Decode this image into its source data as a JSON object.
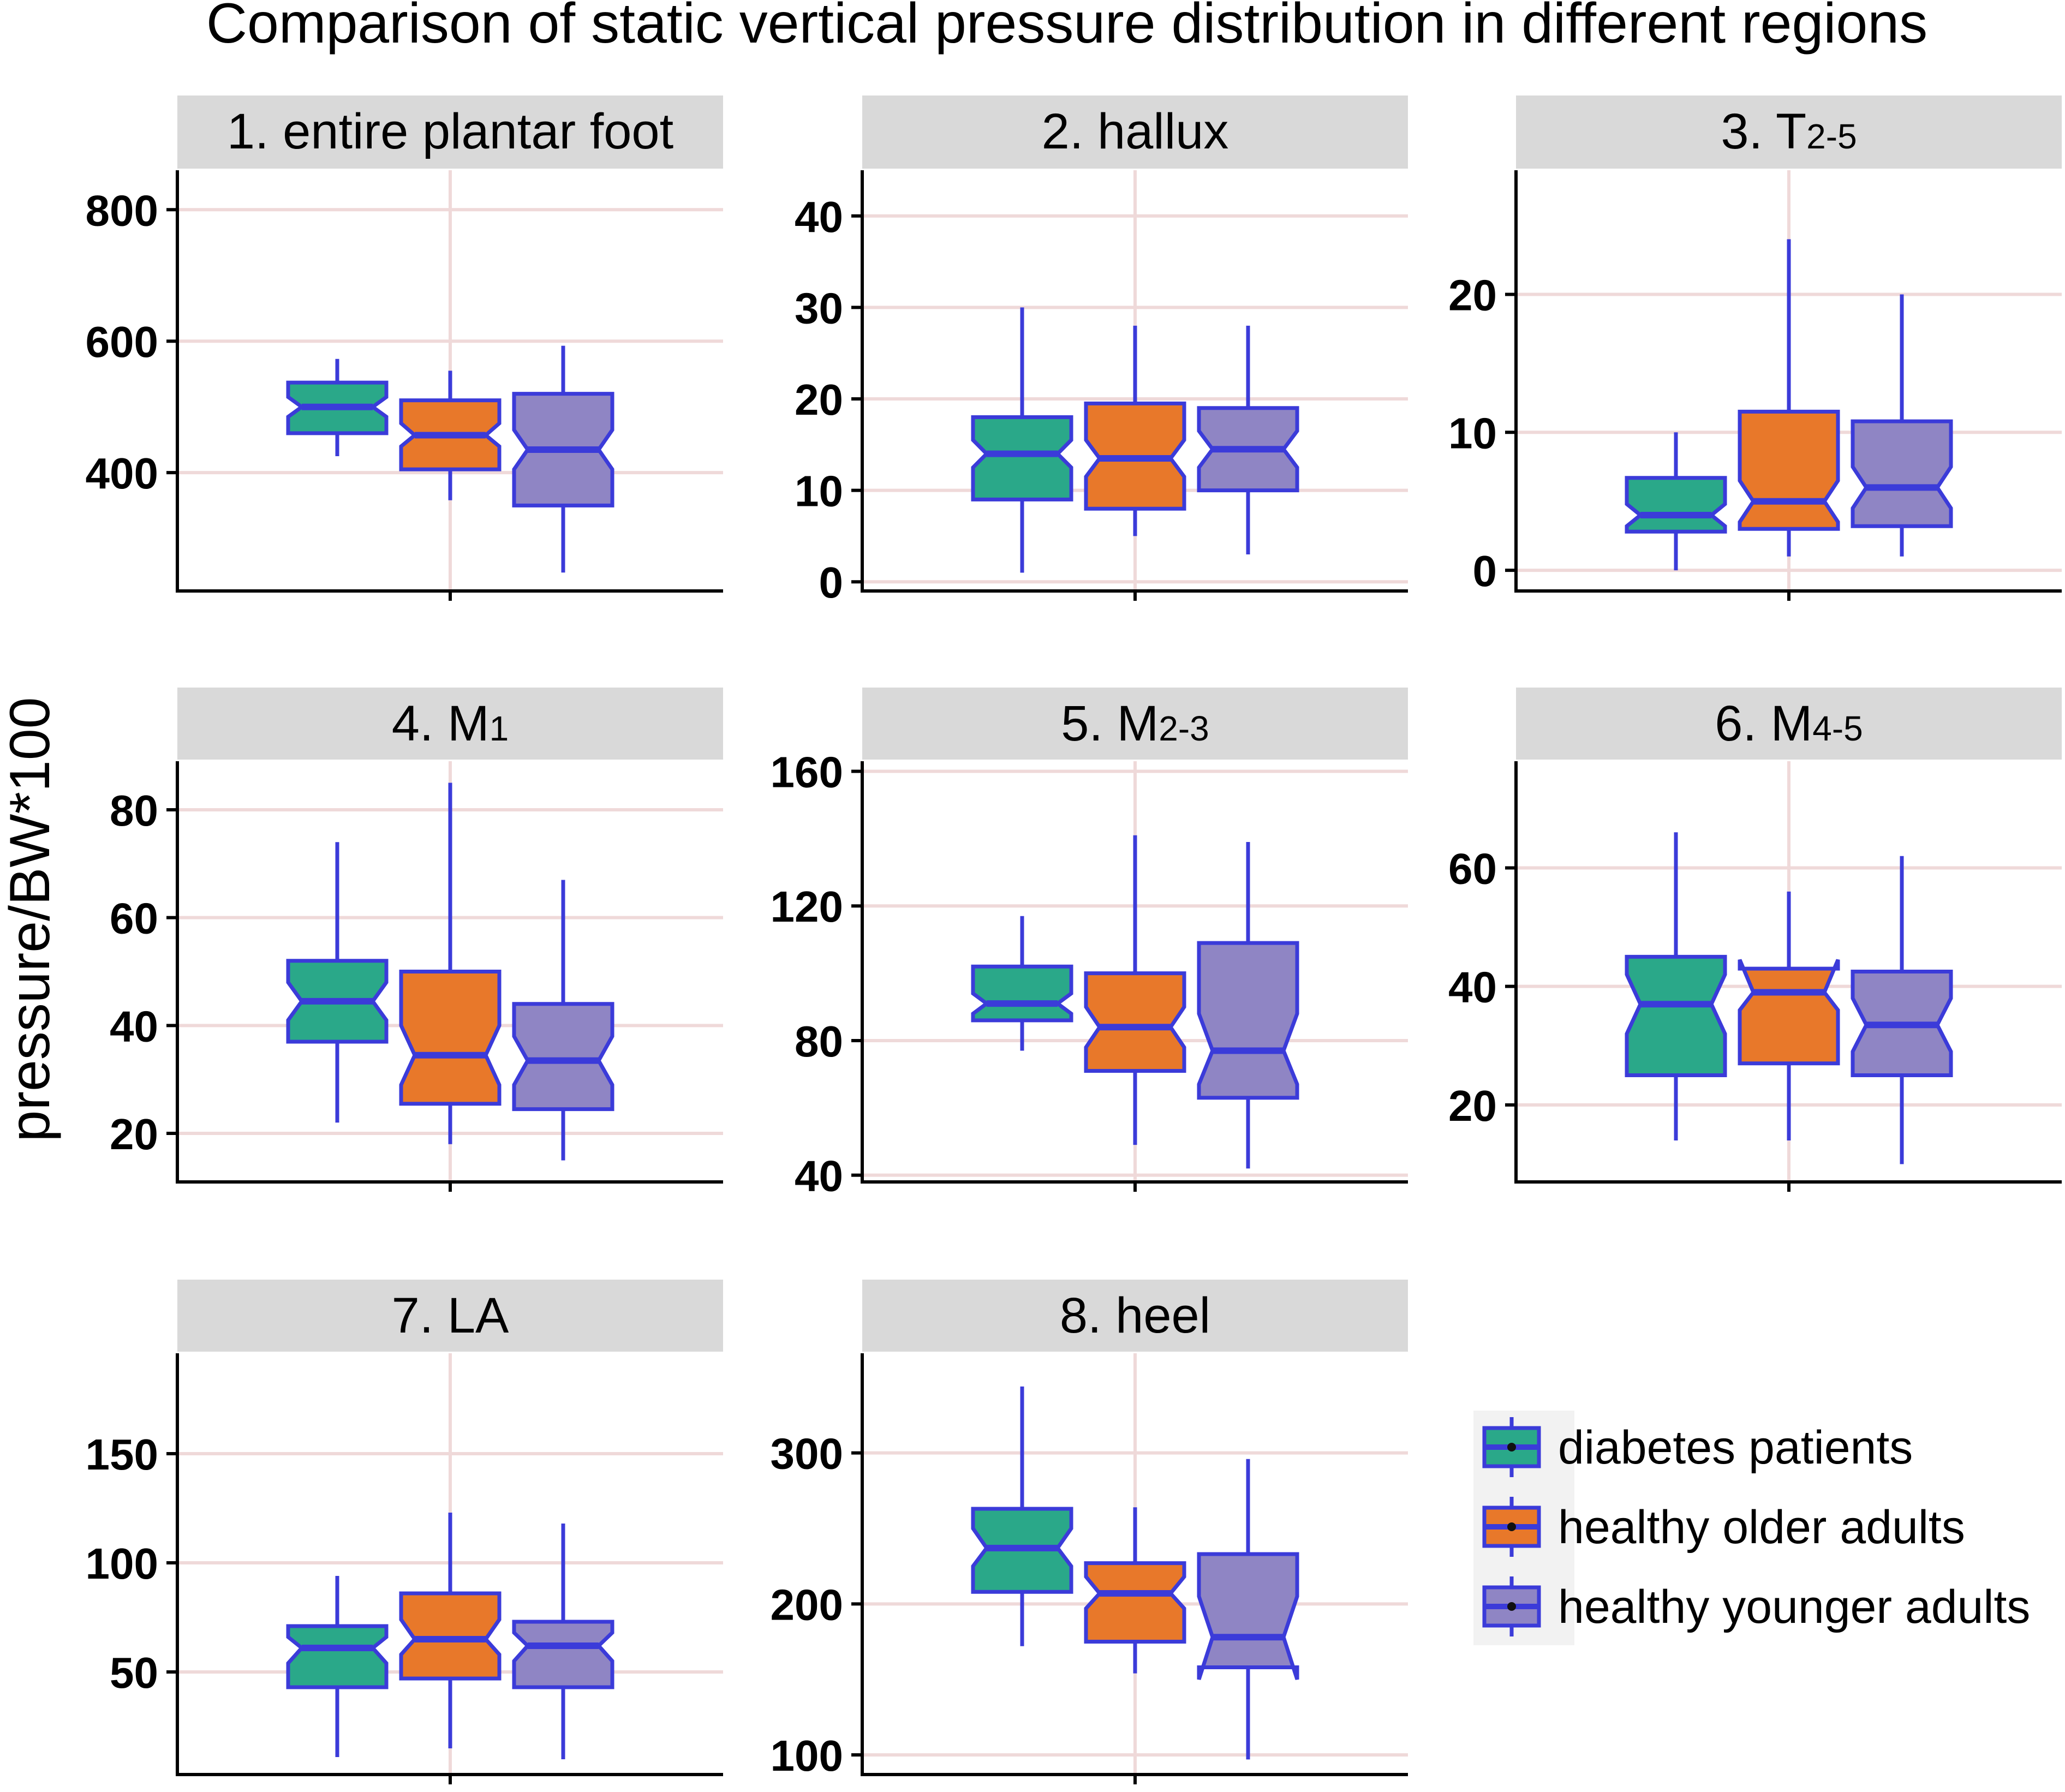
{
  "title": "Comparison of static vertical pressure distribution in different regions",
  "y_label": "pressure/BW*100",
  "colors": {
    "border": "#3b3bd9",
    "diabetes": "#2aa889",
    "older": "#e8782a",
    "younger": "#8f85c4",
    "grid": "#efd9d9",
    "strip": "#d9d9d9"
  },
  "legend": {
    "items": [
      {
        "label": "diabetes patients",
        "color": "#2aa889"
      },
      {
        "label": "healthy older adults",
        "color": "#e8782a"
      },
      {
        "label": "healthy younger adults",
        "color": "#8f85c4"
      }
    ]
  },
  "chart_data": [
    {
      "type": "boxplot",
      "title": "1. entire plantar foot",
      "title_main": "1. entire plantar foot",
      "title_sub": "",
      "ylim": [
        220,
        860
      ],
      "yticks": [
        400,
        600,
        800
      ],
      "series": [
        {
          "name": "diabetes patients",
          "lower_whisker": 425,
          "q1": 460,
          "median": 500,
          "q3": 537,
          "upper_whisker": 573,
          "notch_low": 485,
          "notch_high": 515
        },
        {
          "name": "healthy older adults",
          "lower_whisker": 358,
          "q1": 405,
          "median": 457,
          "q3": 510,
          "upper_whisker": 555,
          "notch_low": 440,
          "notch_high": 475
        },
        {
          "name": "healthy younger adults",
          "lower_whisker": 248,
          "q1": 350,
          "median": 435,
          "q3": 520,
          "upper_whisker": 593,
          "notch_low": 405,
          "notch_high": 465
        }
      ]
    },
    {
      "type": "boxplot",
      "title": "2. hallux",
      "title_main": "2. hallux",
      "title_sub": "",
      "ylim": [
        -1,
        45
      ],
      "yticks": [
        0,
        10,
        20,
        30,
        40
      ],
      "series": [
        {
          "name": "diabetes patients",
          "lower_whisker": 1,
          "q1": 9,
          "median": 14,
          "q3": 18,
          "upper_whisker": 30,
          "notch_low": 12.5,
          "notch_high": 15.5
        },
        {
          "name": "healthy older adults",
          "lower_whisker": 5,
          "q1": 8,
          "median": 13.5,
          "q3": 19.5,
          "upper_whisker": 28,
          "notch_low": 11.5,
          "notch_high": 15.5
        },
        {
          "name": "healthy younger adults",
          "lower_whisker": 3,
          "q1": 10,
          "median": 14.5,
          "q3": 19,
          "upper_whisker": 28,
          "notch_low": 12.5,
          "notch_high": 16.5
        }
      ]
    },
    {
      "type": "boxplot",
      "title": "3. T2-5",
      "title_main": "3. T",
      "title_sub": "2-5",
      "ylim": [
        -1.5,
        29
      ],
      "yticks": [
        0,
        10,
        20
      ],
      "series": [
        {
          "name": "diabetes patients",
          "lower_whisker": 0,
          "q1": 2.8,
          "median": 4,
          "q3": 6.7,
          "upper_whisker": 10,
          "notch_low": 3.2,
          "notch_high": 4.8
        },
        {
          "name": "healthy older adults",
          "lower_whisker": 1,
          "q1": 3,
          "median": 5,
          "q3": 11.5,
          "upper_whisker": 24,
          "notch_low": 3.5,
          "notch_high": 6.5
        },
        {
          "name": "healthy younger adults",
          "lower_whisker": 1,
          "q1": 3.2,
          "median": 6,
          "q3": 10.8,
          "upper_whisker": 20,
          "notch_low": 4.5,
          "notch_high": 7.5
        }
      ]
    },
    {
      "type": "boxplot",
      "title": "4. M1",
      "title_main": "4. M",
      "title_sub": "1",
      "ylim": [
        11,
        89
      ],
      "yticks": [
        20,
        40,
        60,
        80
      ],
      "series": [
        {
          "name": "diabetes patients",
          "lower_whisker": 22,
          "q1": 37,
          "median": 44.5,
          "q3": 52,
          "upper_whisker": 74,
          "notch_low": 41,
          "notch_high": 48
        },
        {
          "name": "healthy older adults",
          "lower_whisker": 18,
          "q1": 25.5,
          "median": 34.5,
          "q3": 50,
          "upper_whisker": 85,
          "notch_low": 29,
          "notch_high": 40
        },
        {
          "name": "healthy younger adults",
          "lower_whisker": 15,
          "q1": 24.5,
          "median": 33.5,
          "q3": 44,
          "upper_whisker": 67,
          "notch_low": 29,
          "notch_high": 38
        }
      ]
    },
    {
      "type": "boxplot",
      "title": "5. M2-3",
      "title_main": "5. M",
      "title_sub": "2-3",
      "ylim": [
        38,
        163
      ],
      "yticks": [
        40,
        80,
        120,
        160
      ],
      "series": [
        {
          "name": "diabetes patients",
          "lower_whisker": 77,
          "q1": 86,
          "median": 91,
          "q3": 102,
          "upper_whisker": 117,
          "notch_low": 88,
          "notch_high": 94
        },
        {
          "name": "healthy older adults",
          "lower_whisker": 49,
          "q1": 71,
          "median": 84,
          "q3": 100,
          "upper_whisker": 141,
          "notch_low": 78,
          "notch_high": 90
        },
        {
          "name": "healthy younger adults",
          "lower_whisker": 42,
          "q1": 63,
          "median": 77,
          "q3": 109,
          "upper_whisker": 139,
          "notch_low": 67,
          "notch_high": 88
        }
      ]
    },
    {
      "type": "boxplot",
      "title": "6. M4-5",
      "title_main": "6. M",
      "title_sub": "4-5",
      "ylim": [
        7,
        78
      ],
      "yticks": [
        20,
        40,
        60
      ],
      "series": [
        {
          "name": "diabetes patients",
          "lower_whisker": 14,
          "q1": 25,
          "median": 37,
          "q3": 45,
          "upper_whisker": 66,
          "notch_low": 32,
          "notch_high": 42
        },
        {
          "name": "healthy older adults",
          "lower_whisker": 14,
          "q1": 27,
          "median": 39,
          "q3": 43,
          "upper_whisker": 56,
          "notch_low": 36,
          "notch_high": 44.5
        },
        {
          "name": "healthy younger adults",
          "lower_whisker": 10,
          "q1": 25,
          "median": 33.5,
          "q3": 42.5,
          "upper_whisker": 62,
          "notch_low": 29,
          "notch_high": 38
        }
      ]
    },
    {
      "type": "boxplot",
      "title": "7. LA",
      "title_main": "7. LA",
      "title_sub": "",
      "ylim": [
        3,
        196
      ],
      "yticks": [
        50,
        100,
        150
      ],
      "series": [
        {
          "name": "diabetes patients",
          "lower_whisker": 11,
          "q1": 43,
          "median": 61,
          "q3": 71,
          "upper_whisker": 94,
          "notch_low": 54,
          "notch_high": 66
        },
        {
          "name": "healthy older adults",
          "lower_whisker": 15,
          "q1": 47,
          "median": 65,
          "q3": 86,
          "upper_whisker": 123,
          "notch_low": 58,
          "notch_high": 74
        },
        {
          "name": "healthy younger adults",
          "lower_whisker": 10,
          "q1": 43,
          "median": 62,
          "q3": 73,
          "upper_whisker": 118,
          "notch_low": 55,
          "notch_high": 68
        }
      ]
    },
    {
      "type": "boxplot",
      "title": "8. heel",
      "title_main": "8. heel",
      "title_sub": "",
      "ylim": [
        87,
        366
      ],
      "yticks": [
        100,
        200,
        300
      ],
      "series": [
        {
          "name": "diabetes patients",
          "lower_whisker": 172,
          "q1": 208,
          "median": 237,
          "q3": 263,
          "upper_whisker": 344,
          "notch_low": 225,
          "notch_high": 250
        },
        {
          "name": "healthy older adults",
          "lower_whisker": 154,
          "q1": 175,
          "median": 207,
          "q3": 227,
          "upper_whisker": 264,
          "notch_low": 197,
          "notch_high": 218
        },
        {
          "name": "healthy younger adults",
          "lower_whisker": 97,
          "q1": 158,
          "median": 178,
          "q3": 233,
          "upper_whisker": 296,
          "notch_low": 150,
          "notch_high": 205
        }
      ]
    }
  ]
}
